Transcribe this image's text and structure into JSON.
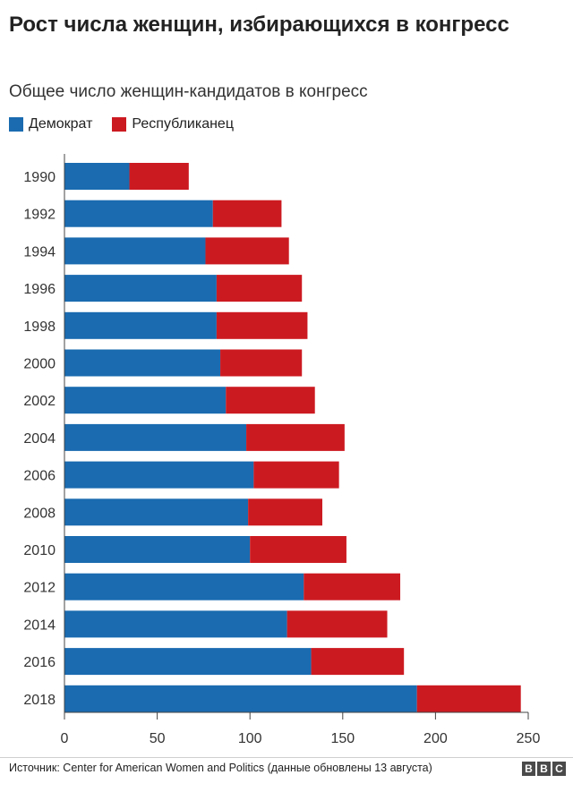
{
  "chart_data": {
    "type": "bar",
    "orientation": "horizontal",
    "stacked": true,
    "title": "Рост числа женщин, избирающихся в конгресс",
    "subtitle": "Общее число женщин-кандидатов в конгресс",
    "categories": [
      "1990",
      "1992",
      "1994",
      "1996",
      "1998",
      "2000",
      "2002",
      "2004",
      "2006",
      "2008",
      "2010",
      "2012",
      "2014",
      "2016",
      "2018"
    ],
    "series": [
      {
        "name": "Демократ",
        "color": "#1a6bb0",
        "values": [
          35,
          80,
          76,
          82,
          82,
          84,
          87,
          98,
          102,
          99,
          100,
          129,
          120,
          133,
          190
        ]
      },
      {
        "name": "Республиканец",
        "color": "#cc1a21",
        "values": [
          32,
          37,
          45,
          46,
          49,
          44,
          48,
          53,
          46,
          40,
          52,
          52,
          54,
          50,
          56
        ]
      }
    ],
    "xlim": [
      0,
      250
    ],
    "xticks": [
      "0",
      "50",
      "100",
      "150",
      "200",
      "250"
    ],
    "legend_position": "top-left"
  },
  "source": "Источник: Center for American Women and Politics (данные обновлены 13 августа)",
  "logo": [
    "B",
    "B",
    "C"
  ]
}
